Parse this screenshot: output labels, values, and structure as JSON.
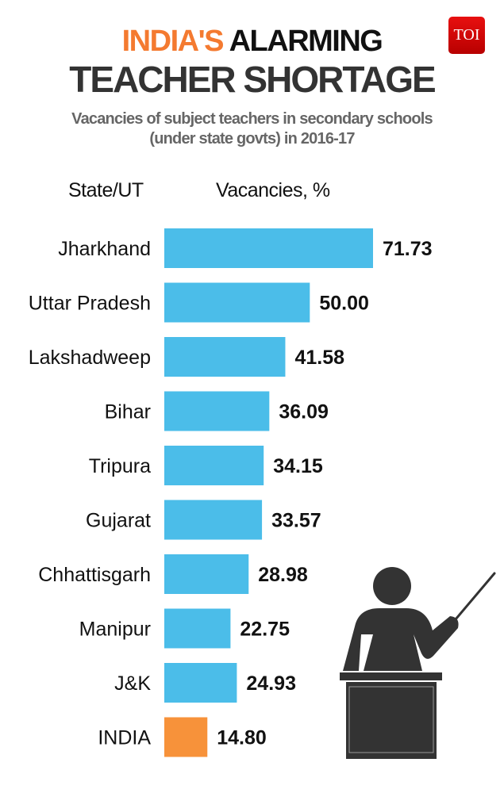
{
  "title": {
    "part1": "INDIA'S",
    "part2": "ALARMING",
    "line2": "TEACHER SHORTAGE"
  },
  "subtitle": [
    "Vacancies of subject teachers in secondary schools",
    "(under state govts) in 2016-17"
  ],
  "logo": "TOI",
  "chart_data": {
    "type": "bar",
    "orientation": "horizontal",
    "column_headers": {
      "category": "State/UT",
      "value": "Vacancies, %"
    },
    "categories": [
      "Jharkhand",
      "Uttar Pradesh",
      "Lakshadweep",
      "Bihar",
      "Tripura",
      "Gujarat",
      "Chhattisgarh",
      "Manipur",
      "J&K",
      "INDIA"
    ],
    "values": [
      71.73,
      50.0,
      41.58,
      36.09,
      34.15,
      33.57,
      28.98,
      22.75,
      24.93,
      14.8
    ],
    "value_labels": [
      "71.73",
      "50.00",
      "41.58",
      "36.09",
      "34.15",
      "33.57",
      "28.98",
      "22.75",
      "24.93",
      "14.80"
    ],
    "colors": {
      "state": "#4bbde9",
      "national": "#f7923a"
    },
    "grid": false
  },
  "illustration": "teacher-at-podium-icon"
}
